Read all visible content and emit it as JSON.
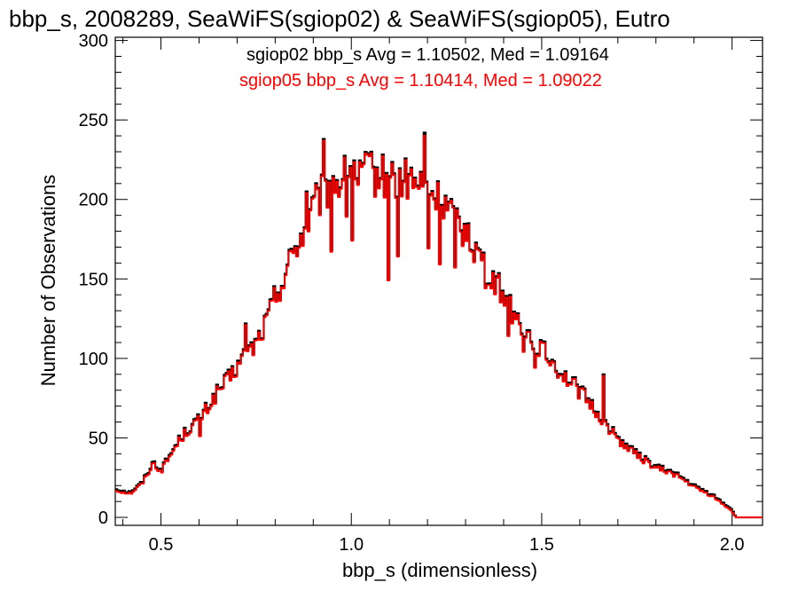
{
  "chart_data": {
    "type": "line",
    "title": "bbp_s, 2008289, SeaWiFS(sgiop02) & SeaWiFS(sgiop05), Eutro",
    "xlabel": "bbp_s (dimensionless)",
    "ylabel": "Number of Observations",
    "xlim": [
      0.38,
      2.08
    ],
    "ylim": [
      -5,
      302
    ],
    "xticks": [
      0.5,
      1.0,
      1.5,
      2.0
    ],
    "xtick_labels": [
      "0.5",
      "1.0",
      "1.5",
      "2.0"
    ],
    "yticks": [
      0,
      50,
      100,
      150,
      200,
      250,
      300
    ],
    "ytick_labels": [
      "0",
      "50",
      "100",
      "150",
      "200",
      "250",
      "300"
    ],
    "grid": false,
    "legend": "top-right",
    "series": [
      {
        "name": "sgiop02 bbp_s Avg = 1.10502, Med = 1.09164",
        "color": "#000000",
        "anchors": [
          [
            0.38,
            18
          ],
          [
            0.42,
            16
          ],
          [
            0.45,
            22
          ],
          [
            0.48,
            35
          ],
          [
            0.5,
            30
          ],
          [
            0.53,
            42
          ],
          [
            0.55,
            50
          ],
          [
            0.58,
            58
          ],
          [
            0.6,
            62
          ],
          [
            0.63,
            72
          ],
          [
            0.65,
            80
          ],
          [
            0.68,
            88
          ],
          [
            0.7,
            95
          ],
          [
            0.72,
            102
          ],
          [
            0.75,
            110
          ],
          [
            0.78,
            125
          ],
          [
            0.8,
            140
          ],
          [
            0.83,
            155
          ],
          [
            0.85,
            170
          ],
          [
            0.88,
            182
          ],
          [
            0.9,
            195
          ],
          [
            0.93,
            205
          ],
          [
            0.95,
            210
          ],
          [
            0.98,
            213
          ],
          [
            1.0,
            220
          ],
          [
            1.05,
            216
          ],
          [
            1.1,
            214
          ],
          [
            1.15,
            212
          ],
          [
            1.2,
            206
          ],
          [
            1.25,
            195
          ],
          [
            1.3,
            178
          ],
          [
            1.35,
            160
          ],
          [
            1.4,
            140
          ],
          [
            1.45,
            120
          ],
          [
            1.5,
            106
          ],
          [
            1.55,
            92
          ],
          [
            1.6,
            80
          ],
          [
            1.65,
            65
          ],
          [
            1.7,
            50
          ],
          [
            1.75,
            40
          ],
          [
            1.8,
            32
          ],
          [
            1.85,
            28
          ],
          [
            1.9,
            20
          ],
          [
            1.95,
            14
          ],
          [
            2.0,
            5
          ],
          [
            2.01,
            0
          ],
          [
            2.08,
            0
          ]
        ],
        "spikes": [
          [
            0.925,
            238
          ],
          [
            1.19,
            242
          ],
          [
            1.05,
            230
          ],
          [
            1.015,
            210
          ],
          [
            1.095,
            150
          ],
          [
            1.12,
            165
          ],
          [
            1.2,
            170
          ],
          [
            0.985,
            190
          ],
          [
            1.155,
            220
          ],
          [
            1.0,
            175
          ],
          [
            0.945,
            168
          ],
          [
            0.82,
            145
          ],
          [
            0.72,
            122
          ],
          [
            0.88,
            205
          ],
          [
            1.27,
            158
          ],
          [
            1.35,
            145
          ],
          [
            1.305,
            185
          ],
          [
            0.6,
            52
          ],
          [
            1.41,
            115
          ],
          [
            1.45,
            105
          ],
          [
            1.6,
            82
          ],
          [
            1.66,
            90
          ],
          [
            1.48,
            95
          ],
          [
            1.23,
            160
          ]
        ]
      },
      {
        "name": "sgiop05 bbp_s Avg = 1.10414, Med = 1.09022",
        "color": "#ff0000",
        "anchors": [
          [
            0.38,
            17
          ],
          [
            0.42,
            15
          ],
          [
            0.45,
            21
          ],
          [
            0.48,
            34
          ],
          [
            0.5,
            29
          ],
          [
            0.53,
            41
          ],
          [
            0.55,
            49
          ],
          [
            0.58,
            57
          ],
          [
            0.6,
            61
          ],
          [
            0.63,
            71
          ],
          [
            0.65,
            79
          ],
          [
            0.68,
            87
          ],
          [
            0.7,
            94
          ],
          [
            0.72,
            101
          ],
          [
            0.75,
            109
          ],
          [
            0.78,
            124
          ],
          [
            0.8,
            139
          ],
          [
            0.83,
            154
          ],
          [
            0.85,
            169
          ],
          [
            0.88,
            181
          ],
          [
            0.9,
            194
          ],
          [
            0.93,
            204
          ],
          [
            0.95,
            209
          ],
          [
            0.98,
            212
          ],
          [
            1.0,
            219
          ],
          [
            1.05,
            215
          ],
          [
            1.1,
            213
          ],
          [
            1.15,
            211
          ],
          [
            1.2,
            205
          ],
          [
            1.25,
            194
          ],
          [
            1.3,
            177
          ],
          [
            1.35,
            159
          ],
          [
            1.4,
            139
          ],
          [
            1.45,
            119
          ],
          [
            1.5,
            105
          ],
          [
            1.55,
            91
          ],
          [
            1.6,
            79
          ],
          [
            1.65,
            64
          ],
          [
            1.7,
            49
          ],
          [
            1.75,
            39
          ],
          [
            1.8,
            31
          ],
          [
            1.85,
            27
          ],
          [
            1.9,
            19
          ],
          [
            1.95,
            13
          ],
          [
            2.0,
            4
          ],
          [
            2.01,
            0
          ],
          [
            2.08,
            0
          ]
        ],
        "spikes": [
          [
            0.925,
            237
          ],
          [
            1.19,
            240
          ],
          [
            1.05,
            229
          ],
          [
            1.015,
            209
          ],
          [
            1.095,
            149
          ],
          [
            1.12,
            164
          ],
          [
            1.2,
            169
          ],
          [
            0.985,
            189
          ],
          [
            1.155,
            219
          ],
          [
            1.0,
            174
          ],
          [
            0.945,
            167
          ],
          [
            0.82,
            144
          ],
          [
            0.72,
            121
          ],
          [
            0.88,
            204
          ],
          [
            1.27,
            157
          ],
          [
            1.35,
            144
          ],
          [
            1.305,
            184
          ],
          [
            0.6,
            51
          ],
          [
            1.41,
            114
          ],
          [
            1.45,
            104
          ],
          [
            1.6,
            81
          ],
          [
            1.66,
            89
          ],
          [
            1.48,
            94
          ],
          [
            1.23,
            159
          ]
        ]
      }
    ]
  }
}
